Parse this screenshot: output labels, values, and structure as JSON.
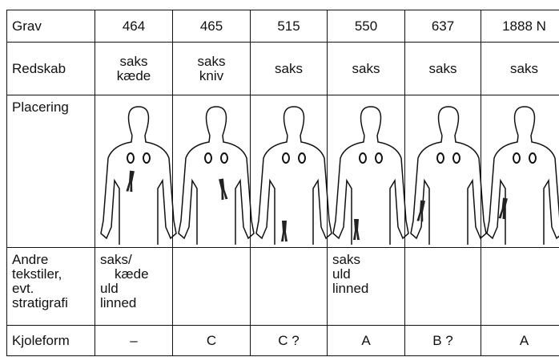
{
  "table": {
    "rows": [
      [
        [
          "Grav"
        ],
        [
          "464"
        ],
        [
          "465"
        ],
        [
          "515"
        ],
        [
          "550"
        ],
        [
          "637"
        ],
        [
          "1888 N"
        ]
      ],
      [
        [
          "Redskab"
        ],
        [
          "saks",
          "kæde"
        ],
        [
          "saks",
          "kniv"
        ],
        [
          "saks"
        ],
        [
          "saks"
        ],
        [
          "saks"
        ],
        [
          "saks"
        ]
      ],
      [
        [
          "Placering"
        ],
        [],
        [],
        [],
        [],
        [],
        []
      ],
      [
        [
          "Andre",
          "tekstiler,",
          "evt.",
          "stratigrafi"
        ],
        [
          "saks/",
          "kæde",
          "uld",
          "linned"
        ],
        [],
        [],
        [
          "saks",
          "uld",
          "linned"
        ],
        [],
        []
      ],
      [
        [
          "Kjoleform"
        ],
        [
          "–"
        ],
        [
          "C"
        ],
        [
          "C ?"
        ],
        [
          "A"
        ],
        [
          "B ?"
        ],
        [
          "A"
        ]
      ]
    ]
  }
}
